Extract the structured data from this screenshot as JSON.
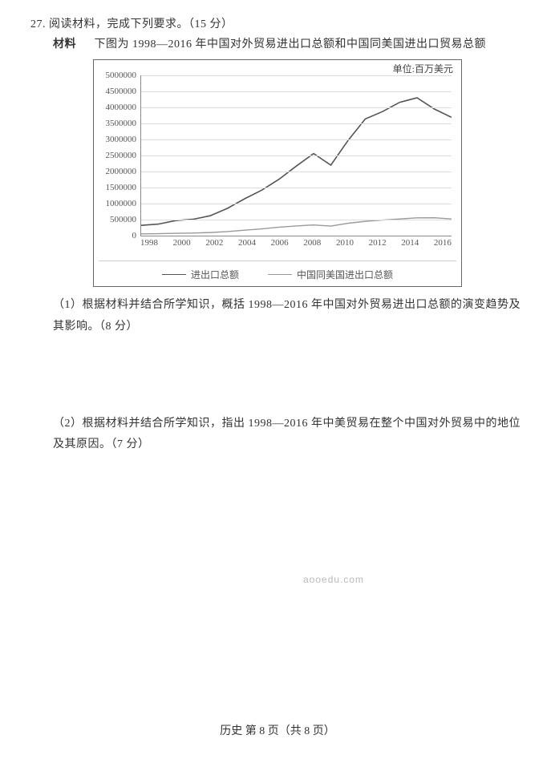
{
  "question": {
    "number_line": "27. 阅读材料，完成下列要求。（15 分）",
    "material_label": "材料",
    "material_text": "下图为 1998—2016 年中国对外贸易进出口总额和中国同美国进出口贸易总额"
  },
  "chart": {
    "type": "line",
    "unit_label": "单位:百万美元",
    "ylim": [
      0,
      5000000
    ],
    "ytick_step": 500000,
    "yticks": [
      0,
      500000,
      1000000,
      1500000,
      2000000,
      2500000,
      3000000,
      3500000,
      4000000,
      4500000,
      5000000
    ],
    "xticks": [
      "1998",
      "2000",
      "2002",
      "2004",
      "2006",
      "2008",
      "2010",
      "2012",
      "2014",
      "2016"
    ],
    "xmin": 1998,
    "xmax": 2016,
    "background_color": "#ffffff",
    "grid_color": "#dddddd",
    "axis_color": "#888888",
    "label_color": "#555555",
    "tick_fontsize": 11,
    "unit_fontsize": 12,
    "series": [
      {
        "name": "total",
        "legend": "进出口总额",
        "color": "#555555",
        "width": 1.6,
        "data": [
          {
            "x": 1998,
            "y": 320000
          },
          {
            "x": 1999,
            "y": 360000
          },
          {
            "x": 2000,
            "y": 470000
          },
          {
            "x": 2001,
            "y": 510000
          },
          {
            "x": 2002,
            "y": 620000
          },
          {
            "x": 2003,
            "y": 850000
          },
          {
            "x": 2004,
            "y": 1150000
          },
          {
            "x": 2005,
            "y": 1420000
          },
          {
            "x": 2006,
            "y": 1760000
          },
          {
            "x": 2007,
            "y": 2170000
          },
          {
            "x": 2008,
            "y": 2560000
          },
          {
            "x": 2009,
            "y": 2200000
          },
          {
            "x": 2010,
            "y": 2970000
          },
          {
            "x": 2011,
            "y": 3640000
          },
          {
            "x": 2012,
            "y": 3870000
          },
          {
            "x": 2013,
            "y": 4160000
          },
          {
            "x": 2014,
            "y": 4300000
          },
          {
            "x": 2015,
            "y": 3950000
          },
          {
            "x": 2016,
            "y": 3690000
          }
        ]
      },
      {
        "name": "us",
        "legend": "中国同美国进出口总额",
        "color": "#999999",
        "width": 1.4,
        "data": [
          {
            "x": 1998,
            "y": 55000
          },
          {
            "x": 1999,
            "y": 62000
          },
          {
            "x": 2000,
            "y": 74000
          },
          {
            "x": 2001,
            "y": 80000
          },
          {
            "x": 2002,
            "y": 97000
          },
          {
            "x": 2003,
            "y": 126000
          },
          {
            "x": 2004,
            "y": 170000
          },
          {
            "x": 2005,
            "y": 212000
          },
          {
            "x": 2006,
            "y": 263000
          },
          {
            "x": 2007,
            "y": 302000
          },
          {
            "x": 2008,
            "y": 334000
          },
          {
            "x": 2009,
            "y": 298000
          },
          {
            "x": 2010,
            "y": 385000
          },
          {
            "x": 2011,
            "y": 447000
          },
          {
            "x": 2012,
            "y": 485000
          },
          {
            "x": 2013,
            "y": 521000
          },
          {
            "x": 2014,
            "y": 555000
          },
          {
            "x": 2015,
            "y": 558000
          },
          {
            "x": 2016,
            "y": 520000
          }
        ]
      }
    ]
  },
  "subquestions": {
    "q1": "（1）根据材料并结合所学知识，概括 1998—2016 年中国对外贸易进出口总额的演变趋势及其影响。（8 分）",
    "q2": "（2）根据材料并结合所学知识，指出 1998—2016 年中美贸易在整个中国对外贸易中的地位及其原因。（7 分）"
  },
  "watermark": "aooedu.com",
  "footer": "历史  第 8 页（共 8 页）"
}
